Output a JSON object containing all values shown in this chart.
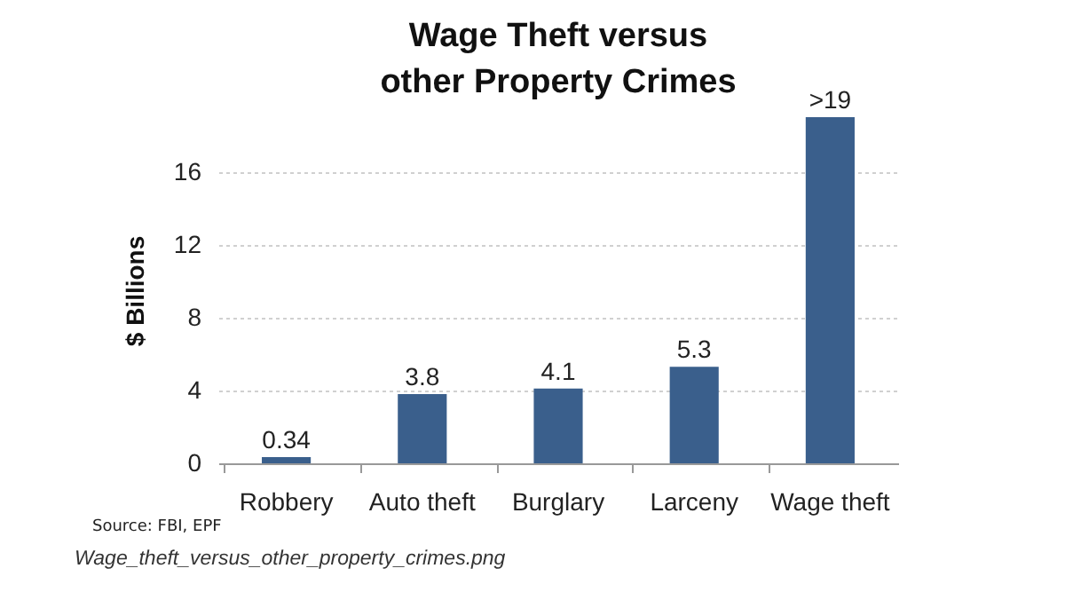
{
  "chart_data": {
    "type": "bar",
    "title": "Wage Theft versus\nother Property Crimes",
    "ylabel": "$ Billions",
    "categories": [
      "Robbery",
      "Auto theft",
      "Burglary",
      "Larceny",
      "Wage theft"
    ],
    "values": [
      0.34,
      3.8,
      4.1,
      5.3,
      19
    ],
    "value_labels": [
      "0.34",
      "3.8",
      "4.1",
      "5.3",
      ">19"
    ],
    "color": "#3a5f8c",
    "ylim": [
      0,
      19
    ],
    "yticks": [
      0,
      4,
      8,
      12,
      16
    ],
    "grid": "y",
    "annotations": [
      "Source: FBI, EPF",
      "Wage_theft_versus_other_property_crimes.png"
    ]
  }
}
